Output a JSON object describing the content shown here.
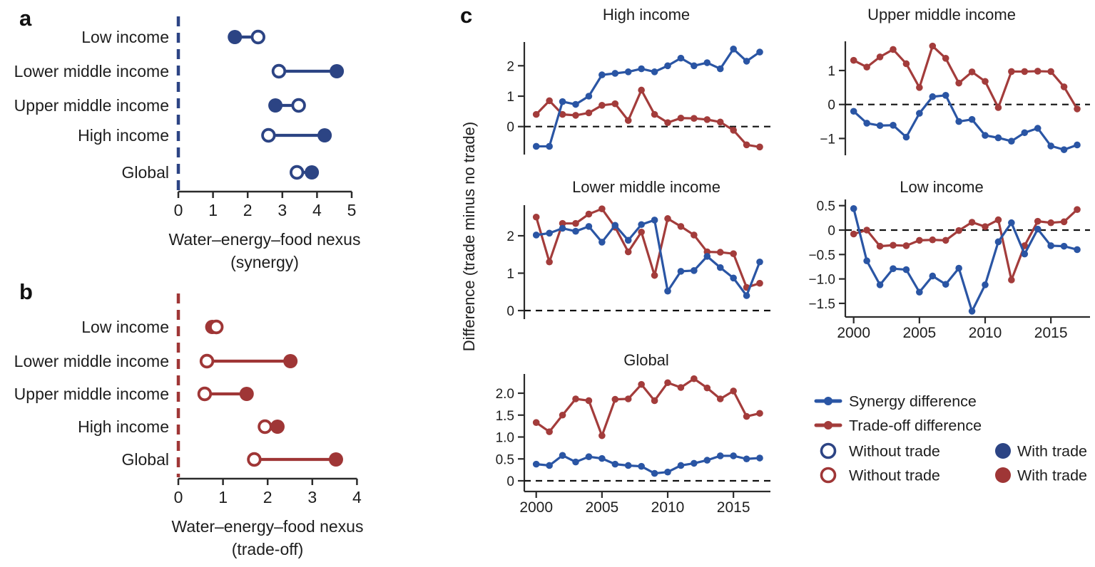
{
  "figure": {
    "panel_a_label": "a",
    "panel_b_label": "b",
    "panel_c_label": "c"
  },
  "colors": {
    "synergy_blue": "#2a55a4",
    "tradeoff_red": "#a33c3b",
    "dumbbell_blue": "#2c4484",
    "dumbbell_red": "#9f3636",
    "text": "#1e1e1e",
    "axis": "#2b2b2b"
  },
  "chart_data": [
    {
      "id": "panel_a",
      "type": "dumbbell",
      "xlabel_line1": "Water–energy–food nexus",
      "xlabel_line2": "(synergy)",
      "x_ticks": [
        0,
        1,
        2,
        3,
        4,
        5
      ],
      "xlim": [
        0,
        5
      ],
      "rows": [
        {
          "label": "Low income",
          "without_trade": 2.3,
          "with_trade": 1.63
        },
        {
          "label": "Lower middle income",
          "without_trade": 2.9,
          "with_trade": 4.57
        },
        {
          "label": "Upper middle income",
          "without_trade": 3.47,
          "with_trade": 2.8
        },
        {
          "label": "High income",
          "without_trade": 2.6,
          "with_trade": 4.22
        },
        {
          "label": "Global",
          "without_trade": 3.42,
          "with_trade": 3.85
        }
      ]
    },
    {
      "id": "panel_b",
      "type": "dumbbell",
      "xlabel_line1": "Water–energy–food nexus",
      "xlabel_line2": "(trade-off)",
      "x_ticks": [
        0,
        1,
        2,
        3,
        4
      ],
      "xlim": [
        0,
        4
      ],
      "rows": [
        {
          "label": "Low income",
          "without_trade": 0.85,
          "with_trade": 0.76
        },
        {
          "label": "Lower middle income",
          "without_trade": 0.64,
          "with_trade": 2.51
        },
        {
          "label": "Upper middle income",
          "without_trade": 0.59,
          "with_trade": 1.53
        },
        {
          "label": "High income",
          "without_trade": 1.94,
          "with_trade": 2.22
        },
        {
          "label": "Global",
          "without_trade": 1.7,
          "with_trade": 3.53
        }
      ]
    },
    {
      "id": "panel_c",
      "type": "line",
      "ylabel": "Difference (trade minus no trade)",
      "year_start": 2000,
      "x_tick_years": [
        2000,
        2005,
        2010,
        2015
      ],
      "charts": [
        {
          "title": "High income",
          "y_ticks": [
            {
              "value": 2,
              "label": "2"
            },
            {
              "value": 1,
              "label": "1"
            },
            {
              "value": 0,
              "label": "0"
            }
          ],
          "show_x_labels": false,
          "synergy": [
            -0.65,
            -0.65,
            0.82,
            0.73,
            1.0,
            1.7,
            1.75,
            1.8,
            1.9,
            1.8,
            2.0,
            2.25,
            2.0,
            2.1,
            1.9,
            2.55,
            2.15,
            2.45
          ],
          "tradeoff": [
            0.4,
            0.85,
            0.4,
            0.37,
            0.45,
            0.7,
            0.75,
            0.2,
            1.2,
            0.4,
            0.13,
            0.28,
            0.27,
            0.23,
            0.15,
            -0.12,
            -0.6,
            -0.67
          ]
        },
        {
          "title": "Upper middle income",
          "y_ticks": [
            {
              "value": 1,
              "label": "1"
            },
            {
              "value": 0,
              "label": "0"
            },
            {
              "value": -1,
              "label": "−1"
            }
          ],
          "show_x_labels": false,
          "synergy": [
            -0.2,
            -0.55,
            -0.62,
            -0.61,
            -0.96,
            -0.26,
            0.23,
            0.27,
            -0.5,
            -0.44,
            -0.91,
            -0.98,
            -1.08,
            -0.83,
            -0.7,
            -1.22,
            -1.33,
            -1.19
          ],
          "tradeoff": [
            1.3,
            1.1,
            1.4,
            1.62,
            1.2,
            0.5,
            1.72,
            1.36,
            0.63,
            0.96,
            0.68,
            -0.09,
            0.97,
            0.97,
            0.98,
            0.97,
            0.52,
            -0.13
          ]
        },
        {
          "title": "Lower middle income",
          "y_ticks": [
            {
              "value": 2,
              "label": "2"
            },
            {
              "value": 1,
              "label": "1"
            },
            {
              "value": 0,
              "label": "0"
            }
          ],
          "show_x_labels": false,
          "synergy": [
            2.02,
            2.07,
            2.2,
            2.12,
            2.25,
            1.83,
            2.28,
            1.88,
            2.3,
            2.42,
            0.52,
            1.05,
            1.07,
            1.45,
            1.15,
            0.87,
            0.4,
            1.3
          ],
          "tradeoff": [
            2.5,
            1.3,
            2.33,
            2.33,
            2.58,
            2.72,
            2.23,
            1.57,
            2.1,
            0.94,
            2.46,
            2.25,
            2.02,
            1.57,
            1.56,
            1.52,
            0.62,
            0.73
          ]
        },
        {
          "title": "Low income",
          "y_ticks": [
            {
              "value": 0.5,
              "label": "0.5"
            },
            {
              "value": 0,
              "label": "0"
            },
            {
              "value": -0.5,
              "label": "−0.5"
            },
            {
              "value": -1.0,
              "label": "−1.0"
            },
            {
              "value": -1.5,
              "label": "−1.5"
            }
          ],
          "show_x_labels": true,
          "synergy": [
            0.44,
            -0.63,
            -1.12,
            -0.79,
            -0.81,
            -1.27,
            -0.94,
            -1.11,
            -0.78,
            -1.66,
            -1.12,
            -0.24,
            0.15,
            -0.49,
            0.02,
            -0.32,
            -0.33,
            -0.4
          ],
          "tradeoff": [
            -0.08,
            0.0,
            -0.33,
            -0.31,
            -0.32,
            -0.21,
            -0.2,
            -0.21,
            -0.01,
            0.16,
            0.07,
            0.21,
            -1.02,
            -0.32,
            0.18,
            0.15,
            0.17,
            0.42
          ]
        },
        {
          "title": "Global",
          "y_ticks": [
            {
              "value": 2.0,
              "label": "2.0"
            },
            {
              "value": 1.5,
              "label": "1.5"
            },
            {
              "value": 1.0,
              "label": "1.0"
            },
            {
              "value": 0.5,
              "label": "0.5"
            },
            {
              "value": 0,
              "label": "0"
            }
          ],
          "show_x_labels": true,
          "synergy": [
            0.38,
            0.35,
            0.58,
            0.43,
            0.55,
            0.51,
            0.38,
            0.35,
            0.33,
            0.17,
            0.2,
            0.35,
            0.4,
            0.47,
            0.57,
            0.57,
            0.5,
            0.52
          ],
          "tradeoff": [
            1.33,
            1.12,
            1.5,
            1.87,
            1.83,
            1.03,
            1.86,
            1.87,
            2.2,
            1.83,
            2.24,
            2.13,
            2.33,
            2.12,
            1.87,
            2.05,
            1.47,
            1.54
          ]
        }
      ],
      "legend": {
        "series": [
          {
            "label": "Synergy difference",
            "color_key": "synergy_blue"
          },
          {
            "label": "Trade-off difference",
            "color_key": "tradeoff_red"
          }
        ],
        "markers": [
          {
            "label": "Without trade",
            "type": "open",
            "color_key": "dumbbell_blue"
          },
          {
            "label": "With trade",
            "type": "filled",
            "color_key": "dumbbell_blue"
          },
          {
            "label": "Without trade",
            "type": "open",
            "color_key": "dumbbell_red"
          },
          {
            "label": "With trade",
            "type": "filled",
            "color_key": "dumbbell_red"
          }
        ]
      }
    }
  ]
}
